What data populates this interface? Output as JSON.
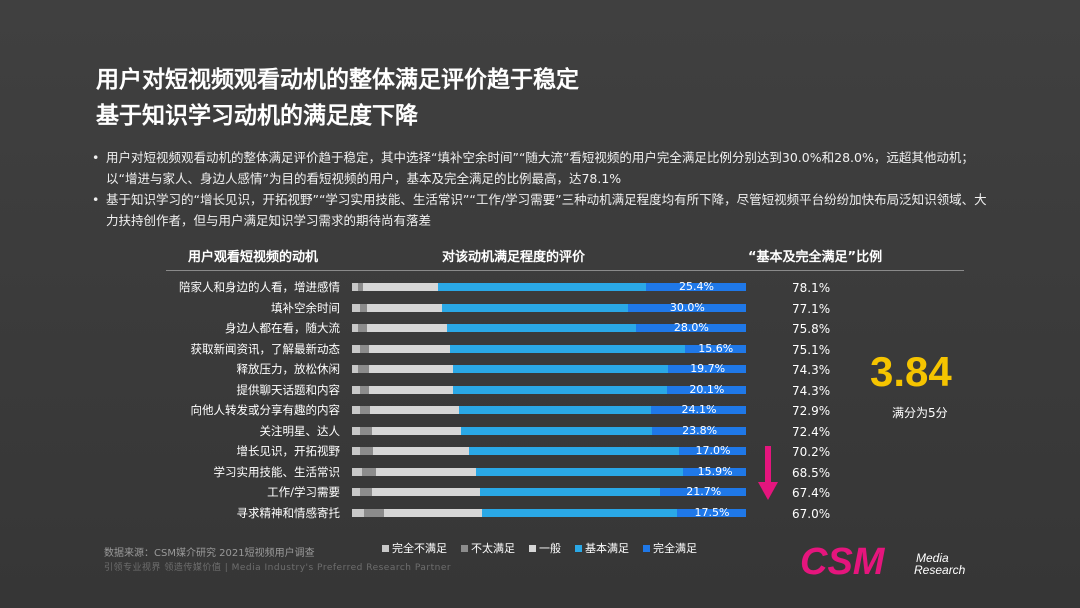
{
  "title_line1": "用户对短视频观看动机的整体满足评价趋于稳定",
  "title_line2": "基于知识学习动机的满足度下降",
  "bullets": [
    "用户对短视频观看动机的整体满足评价趋于稳定，其中选择“填补空余时间”“随大流”看短视频的用户完全满足比例分别达到30.0%和28.0%，远超其他动机；以“增进与家人、身边人感情”为目的看短视频的用户，基本及完全满足的比例最高，达78.1%",
    "基于知识学习的“增长见识，开拓视野”“学习实用技能、生活常识”“工作/学习需要”三种动机满足程度均有所下降，尽管短视频平台纷纷加快布局泛知识领域、大力扶持创作者，但与用户满足知识学习需求的期待尚有落差"
  ],
  "headers": {
    "motive": "用户观看短视频的动机",
    "evaluation": "对该动机满足程度的评价",
    "ratio": "“基本及完全满足”比例"
  },
  "score": {
    "value": "3.84",
    "note": "满分为5分"
  },
  "source": "数据来源：CSM媒介研究 2021短视频用户调查",
  "tagline": "引领专业视界  领造传媒价值 | Media Industry's Preferred Research Partner",
  "logo": {
    "main": "CSM",
    "line1": "Media",
    "line2": "Research"
  },
  "colors": {
    "very_unsatisfied": "#c8c8c8",
    "unsatisfied": "#8c8c8c",
    "neutral": "#d6d6d6",
    "basic": "#2aa8e6",
    "full": "#1f78e8",
    "score": "#f5c400",
    "arrow": "#e5157d",
    "logo": "#e5157d"
  },
  "chart_data": {
    "type": "bar",
    "orientation": "horizontal",
    "stacked": true,
    "percent_stacked": true,
    "legend_position": "bottom",
    "categories": [
      "陪家人和身边的人看，增进感情",
      "填补空余时间",
      "身边人都在看，随大流",
      "获取新闻资讯，了解最新动态",
      "释放压力，放松休闲",
      "提供聊天话题和内容",
      "向他人转发或分享有趣的内容",
      "关注明星、达人",
      "增长见识，开拓视野",
      "学习实用技能、生活常识",
      "工作/学习需要",
      "寻求精神和情感寄托"
    ],
    "series": [
      {
        "name": "完全不满足",
        "values": [
          1.5,
          2.0,
          1.5,
          2.0,
          1.5,
          2.0,
          2.0,
          2.0,
          2.0,
          2.5,
          2.0,
          3.0
        ]
      },
      {
        "name": "不太满足",
        "values": [
          1.4,
          1.9,
          2.2,
          2.4,
          2.7,
          2.2,
          2.6,
          3.1,
          3.3,
          3.6,
          3.1,
          5.0
        ]
      },
      {
        "name": "一般",
        "values": [
          19.0,
          19.0,
          20.5,
          20.5,
          21.5,
          21.5,
          22.5,
          22.5,
          24.5,
          25.4,
          27.5,
          25.0
        ]
      },
      {
        "name": "基本满足",
        "values": [
          52.7,
          47.1,
          47.8,
          59.5,
          54.6,
          54.2,
          48.8,
          48.6,
          53.2,
          52.6,
          45.7,
          49.5
        ]
      },
      {
        "name": "完全满足",
        "values": [
          25.4,
          30.0,
          28.0,
          15.6,
          19.7,
          20.1,
          24.1,
          23.8,
          17.0,
          15.9,
          21.7,
          17.5
        ]
      }
    ],
    "full_labels": [
      "25.4%",
      "30.0%",
      "28.0%",
      "15.6%",
      "19.7%",
      "20.1%",
      "24.1%",
      "23.8%",
      "17.0%",
      "15.9%",
      "21.7%",
      "17.5%"
    ],
    "ratio_labels": [
      "78.1%",
      "77.1%",
      "75.8%",
      "75.1%",
      "74.3%",
      "74.3%",
      "72.9%",
      "72.4%",
      "70.2%",
      "68.5%",
      "67.4%",
      "67.0%"
    ],
    "xlim": [
      0,
      100
    ]
  }
}
